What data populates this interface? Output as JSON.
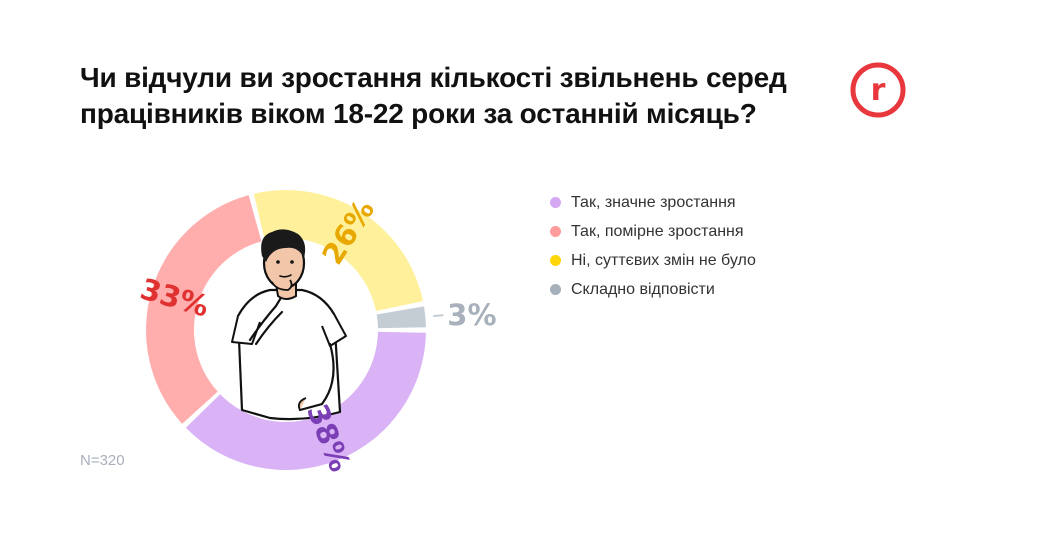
{
  "title": "Чи відчули ви зростання кількості звільнень серед працівників віком 18-22 роки за останній місяць?",
  "logo": {
    "icon": "rubryka-logo-icon",
    "letter": "r",
    "color": "#e8383d"
  },
  "note": "N=320",
  "illustration": {
    "icon": "thinking-man-icon"
  },
  "chart_data": {
    "type": "pie",
    "style": "donut",
    "categories": [
      "Так, значне зростання",
      "Так, помірне зростання",
      "Ні, суттєвих змін не було",
      "Складно відповісти"
    ],
    "values": [
      38,
      33,
      26,
      3
    ],
    "labels": [
      "38%",
      "33%",
      "26%",
      "3%"
    ],
    "colors": [
      "#d9b3f5",
      "#ffadad",
      "#fff19c",
      "#c4ccd4"
    ],
    "label_colors": [
      "#7b3fb5",
      "#e03131",
      "#e8a800",
      "#a7b0bb"
    ],
    "legend_position": "right",
    "legend_dot_colors": [
      "#d5a8f3",
      "#ff9d9d",
      "#ffd60a",
      "#a6b0ba"
    ]
  }
}
